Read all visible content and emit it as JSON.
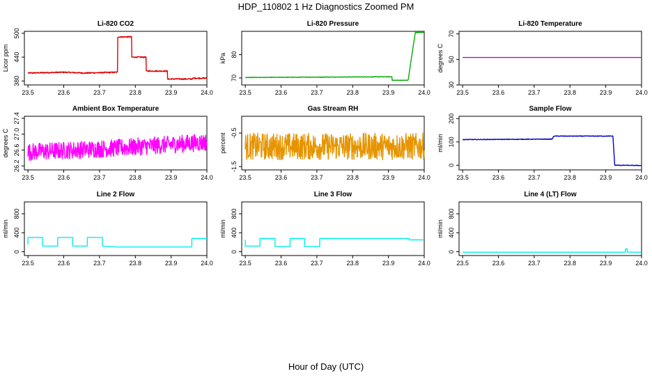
{
  "figure": {
    "title": "HDP_110802  1 Hz Diagnostics Zoomed PM",
    "xlabel": "Hour of Day (UTC)"
  },
  "chart_data": [
    {
      "type": "line",
      "title": "Li-820 CO2",
      "ylabel": "Licor ppm",
      "color": "#dd0000",
      "xlim": [
        23.49,
        24.0
      ],
      "ylim": [
        370,
        505
      ],
      "x_ticks": [
        "23.5",
        "23.6",
        "23.7",
        "23.8",
        "23.9",
        "24.0"
      ],
      "y_ticks": [
        {
          "value": 380,
          "label": "380"
        },
        {
          "value": 440,
          "label": "440"
        },
        {
          "value": 500,
          "label": "500"
        }
      ],
      "series": [
        {
          "name": "CO2",
          "noise": 1.5,
          "x": [
            23.5,
            23.6,
            23.66,
            23.75,
            23.75,
            23.79,
            23.79,
            23.83,
            23.83,
            23.89,
            23.89,
            23.96,
            23.96,
            24.0
          ],
          "y": [
            400,
            402,
            400,
            402,
            491,
            491,
            440,
            440,
            405,
            405,
            385,
            385,
            387,
            387
          ]
        }
      ]
    },
    {
      "type": "line",
      "title": "Li-820 Pressure",
      "ylabel": "kPa",
      "color": "#00aa00",
      "xlim": [
        23.49,
        24.0
      ],
      "ylim": [
        67,
        90
      ],
      "x_ticks": [
        "23.5",
        "23.6",
        "23.7",
        "23.8",
        "23.9",
        "24.0"
      ],
      "y_ticks": [
        {
          "value": 70,
          "label": "70"
        },
        {
          "value": 80,
          "label": "80"
        }
      ],
      "series": [
        {
          "name": "Pressure",
          "noise": 0.1,
          "x": [
            23.5,
            23.89,
            23.91,
            23.91,
            23.955,
            23.975,
            24.0
          ],
          "y": [
            70.2,
            70.5,
            70.5,
            69,
            69,
            89.5,
            89.5
          ]
        }
      ]
    },
    {
      "type": "line",
      "title": "Li-820 Temperature",
      "ylabel": "degrees C",
      "color": "#cc00cc",
      "xlim": [
        23.49,
        24.0
      ],
      "ylim": [
        30,
        72
      ],
      "x_ticks": [
        "23.5",
        "23.6",
        "23.7",
        "23.8",
        "23.9",
        "24.0"
      ],
      "y_ticks": [
        {
          "value": 30,
          "label": "30"
        },
        {
          "value": 50,
          "label": "50"
        },
        {
          "value": 70,
          "label": "70"
        }
      ],
      "series": [
        {
          "name": "Temperature",
          "noise": 0,
          "x": [
            23.5,
            24.0
          ],
          "y": [
            51.5,
            51.5
          ]
        }
      ]
    },
    {
      "type": "line",
      "title": "Ambient Box Temperature",
      "ylabel": "degrees C",
      "color": "#ff00ff",
      "xlim": [
        23.49,
        24.0
      ],
      "ylim": [
        26.1,
        27.45
      ],
      "x_ticks": [
        "23.5",
        "23.6",
        "23.7",
        "23.8",
        "23.9",
        "24.0"
      ],
      "y_ticks": [
        {
          "value": 26.2,
          "label": "26.2"
        },
        {
          "value": 26.6,
          "label": "26.6"
        },
        {
          "value": 27.0,
          "label": "27.0"
        },
        {
          "value": 27.4,
          "label": "27.4"
        }
      ],
      "series": [
        {
          "name": "Box Temp",
          "noise": 0.22,
          "x": [
            23.5,
            23.75,
            24.0
          ],
          "y": [
            26.55,
            26.65,
            26.8
          ]
        }
      ]
    },
    {
      "type": "line",
      "title": "Gas Stream RH",
      "ylabel": "percent",
      "color": "#e69500",
      "xlim": [
        23.49,
        24.0
      ],
      "ylim": [
        -1.6,
        0.0
      ],
      "x_ticks": [
        "23.5",
        "23.6",
        "23.7",
        "23.8",
        "23.9",
        "24.0"
      ],
      "y_ticks": [
        {
          "value": -1.5,
          "label": "-1.5"
        },
        {
          "value": -0.5,
          "label": "-0.5"
        }
      ],
      "series": [
        {
          "name": "RH",
          "noise": 0.4,
          "x": [
            23.5,
            24.0
          ],
          "y": [
            -0.9,
            -0.9
          ]
        }
      ]
    },
    {
      "type": "line",
      "title": "Sample Flow",
      "ylabel": "ml/min",
      "color": "#0000cc",
      "xlim": [
        23.49,
        24.0
      ],
      "ylim": [
        -20,
        210
      ],
      "x_ticks": [
        "23.5",
        "23.6",
        "23.7",
        "23.8",
        "23.9",
        "24.0"
      ],
      "y_ticks": [
        {
          "value": 0,
          "label": "0"
        },
        {
          "value": 100,
          "label": "100"
        },
        {
          "value": 200,
          "label": "200"
        }
      ],
      "series": [
        {
          "name": "Sample Flow",
          "noise": 1.2,
          "x": [
            23.5,
            23.75,
            23.755,
            23.92,
            23.925,
            24.0
          ],
          "y": [
            110,
            112,
            125,
            125,
            0,
            -1
          ]
        }
      ]
    },
    {
      "type": "line",
      "title": "Line 2 Flow",
      "ylabel": "ml/min",
      "color": "#00eeee",
      "xlim": [
        23.49,
        24.0
      ],
      "ylim": [
        -80,
        1050
      ],
      "x_ticks": [
        "23.5",
        "23.6",
        "23.7",
        "23.8",
        "23.9",
        "24.0"
      ],
      "y_ticks": [
        {
          "value": 0,
          "label": "0"
        },
        {
          "value": 400,
          "label": "400"
        },
        {
          "value": 800,
          "label": "800"
        }
      ],
      "series": [
        {
          "name": "Line 2",
          "noise": 0,
          "x": [
            23.5,
            23.5,
            23.541,
            23.541,
            23.583,
            23.583,
            23.625,
            23.625,
            23.666,
            23.666,
            23.708,
            23.708,
            23.75,
            23.958,
            23.958,
            24.0
          ],
          "y": [
            150,
            300,
            300,
            120,
            120,
            300,
            300,
            120,
            120,
            300,
            300,
            120,
            100,
            100,
            280,
            280
          ]
        }
      ]
    },
    {
      "type": "line",
      "title": "Line 3 Flow",
      "ylabel": "ml/min",
      "color": "#00eeee",
      "xlim": [
        23.49,
        24.0
      ],
      "ylim": [
        -80,
        1050
      ],
      "x_ticks": [
        "23.5",
        "23.6",
        "23.7",
        "23.8",
        "23.9",
        "24.0"
      ],
      "y_ticks": [
        {
          "value": 0,
          "label": "0"
        },
        {
          "value": 400,
          "label": "400"
        },
        {
          "value": 800,
          "label": "800"
        }
      ],
      "series": [
        {
          "name": "Line 3",
          "noise": 0,
          "x": [
            23.5,
            23.5,
            23.5,
            23.541,
            23.541,
            23.583,
            23.583,
            23.625,
            23.625,
            23.666,
            23.666,
            23.708,
            23.708,
            23.958,
            23.958,
            24.0
          ],
          "y": [
            250,
            120,
            120,
            120,
            280,
            280,
            110,
            110,
            280,
            280,
            110,
            110,
            280,
            280,
            250,
            250
          ]
        }
      ]
    },
    {
      "type": "line",
      "title": "Line 4 (LT) Flow",
      "ylabel": "ml/min",
      "color": "#00eeee",
      "xlim": [
        23.49,
        24.0
      ],
      "ylim": [
        -80,
        1050
      ],
      "x_ticks": [
        "23.5",
        "23.6",
        "23.7",
        "23.8",
        "23.9",
        "24.0"
      ],
      "y_ticks": [
        {
          "value": 0,
          "label": "0"
        },
        {
          "value": 400,
          "label": "400"
        },
        {
          "value": 800,
          "label": "800"
        }
      ],
      "series": [
        {
          "name": "Line 4",
          "noise": 0,
          "x": [
            23.5,
            23.955,
            23.955,
            23.96,
            23.96,
            24.0
          ],
          "y": [
            -10,
            -10,
            60,
            60,
            -10,
            -10
          ]
        }
      ]
    }
  ]
}
